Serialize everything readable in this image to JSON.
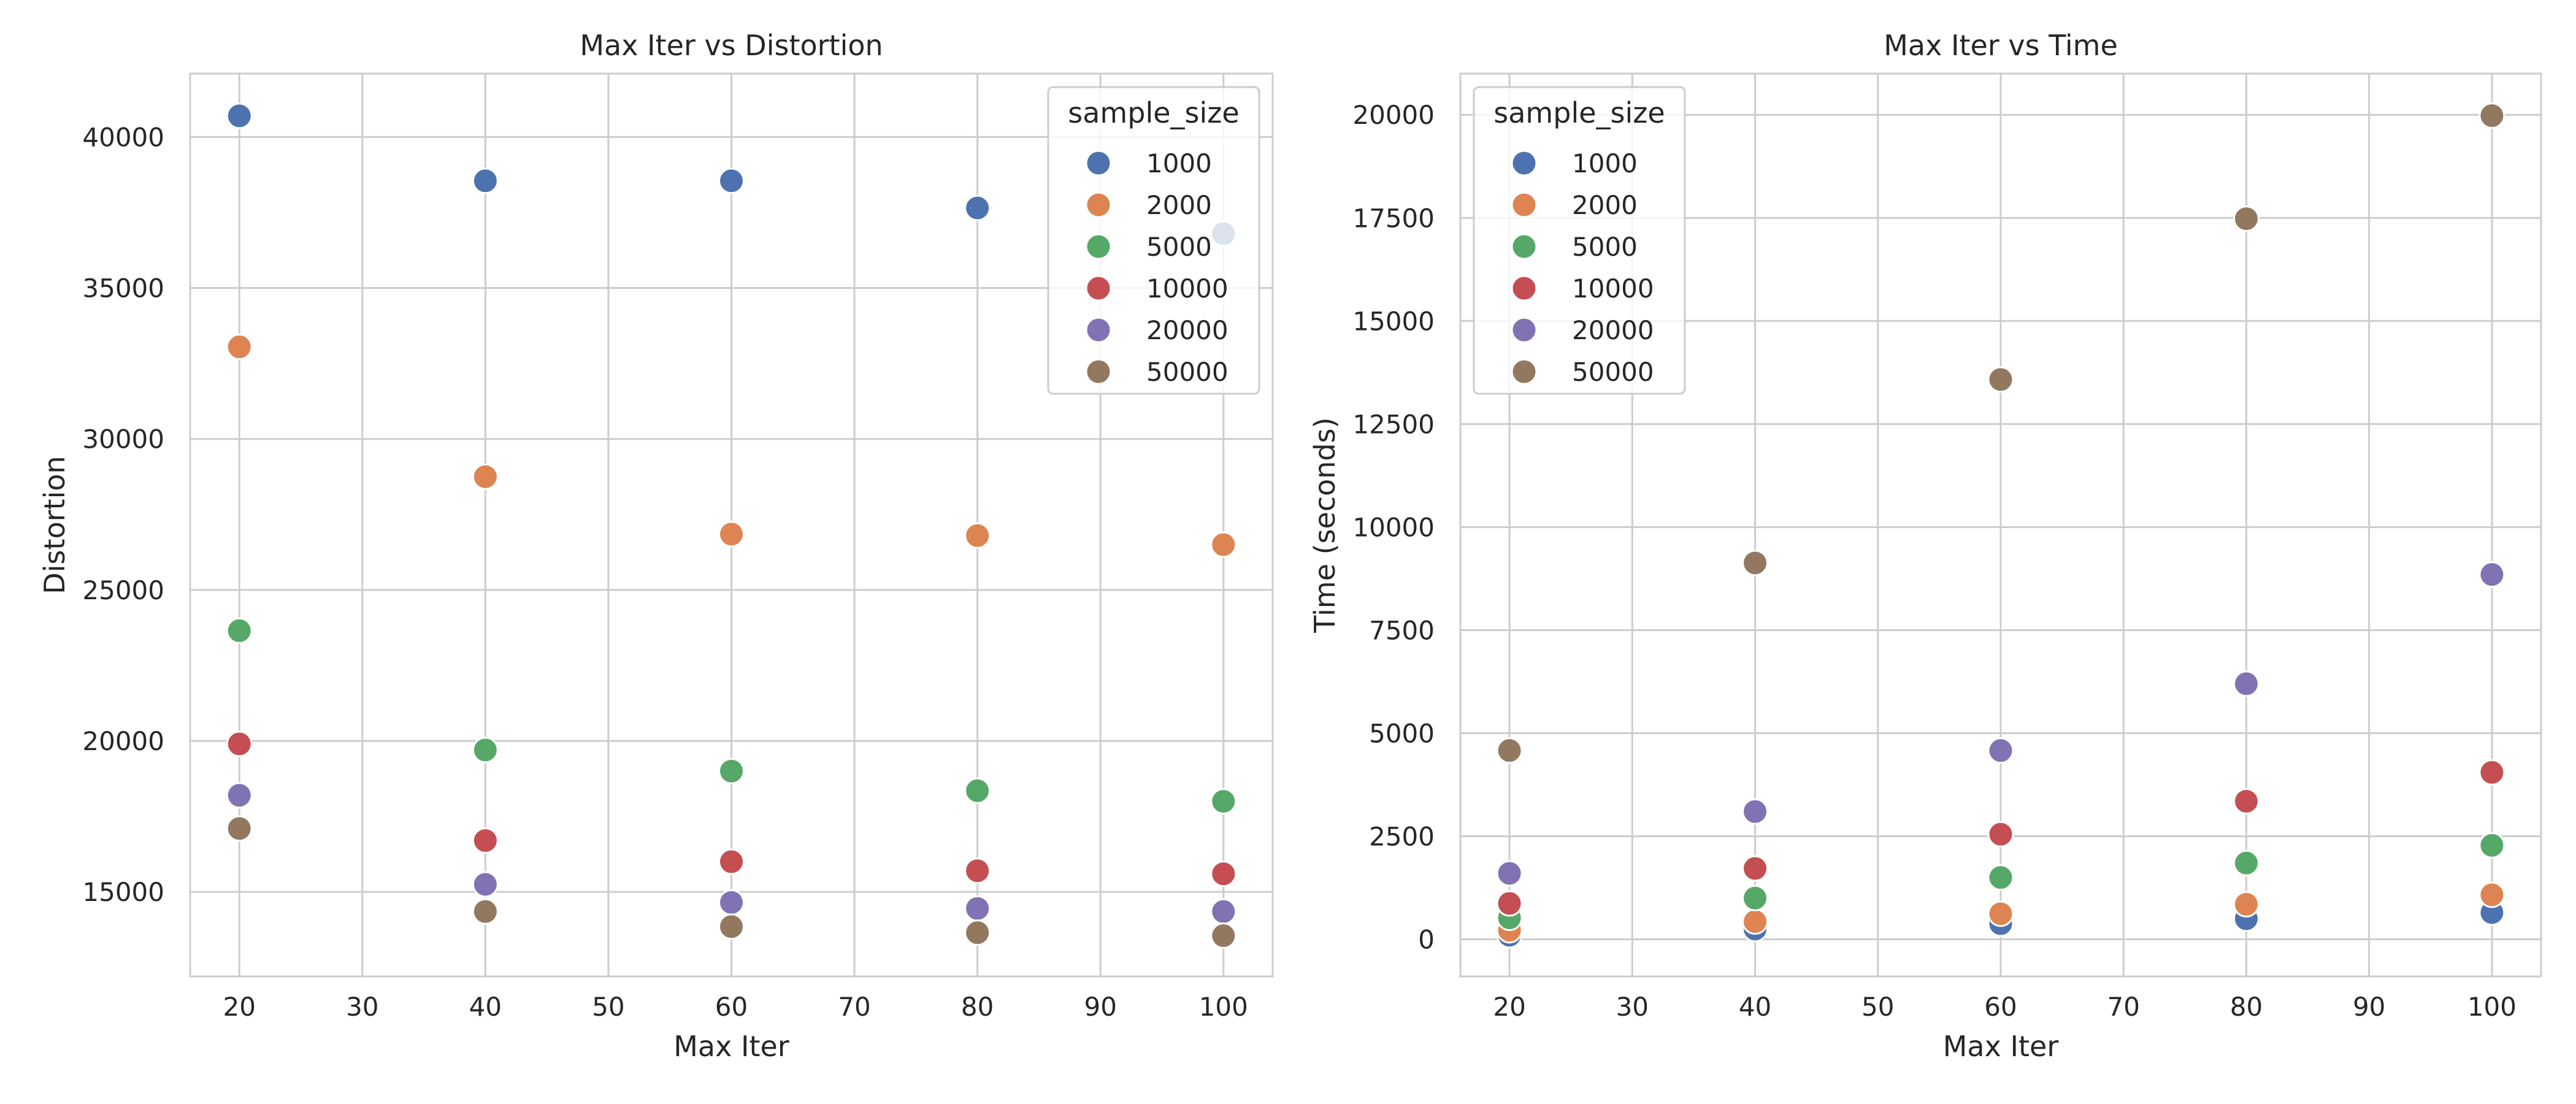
{
  "chart_data": [
    {
      "type": "scatter",
      "title": "Max Iter vs Distortion",
      "xlabel": "Max Iter",
      "ylabel": "Distortion",
      "xlim": [
        16,
        104
      ],
      "ylim": [
        12200,
        42100
      ],
      "xticks": [
        20,
        30,
        40,
        50,
        60,
        70,
        80,
        90,
        100
      ],
      "yticks": [
        15000,
        20000,
        25000,
        30000,
        35000,
        40000
      ],
      "grid": true,
      "legend": {
        "title": "sample_size",
        "placement": "top-right"
      },
      "x": [
        20,
        40,
        60,
        80,
        100
      ],
      "series": [
        {
          "name": "1000",
          "color": "#4c72b0",
          "values": [
            40700,
            38550,
            38550,
            37650,
            36800
          ]
        },
        {
          "name": "2000",
          "color": "#dd8452",
          "values": [
            33050,
            28750,
            26850,
            26800,
            26500
          ]
        },
        {
          "name": "5000",
          "color": "#55a868",
          "values": [
            23650,
            19700,
            19000,
            18350,
            18000
          ]
        },
        {
          "name": "10000",
          "color": "#c44e52",
          "values": [
            19900,
            16700,
            16000,
            15700,
            15600
          ]
        },
        {
          "name": "20000",
          "color": "#8172b3",
          "values": [
            18200,
            15250,
            14650,
            14450,
            14350
          ]
        },
        {
          "name": "50000",
          "color": "#937860",
          "values": [
            17100,
            14350,
            13850,
            13650,
            13550
          ]
        }
      ]
    },
    {
      "type": "scatter",
      "title": "Max Iter vs Time",
      "xlabel": "Max Iter",
      "ylabel": "Time (seconds)",
      "xlim": [
        16,
        104
      ],
      "ylim": [
        -900,
        21000
      ],
      "xticks": [
        20,
        30,
        40,
        50,
        60,
        70,
        80,
        90,
        100
      ],
      "yticks": [
        0,
        2500,
        5000,
        7500,
        10000,
        12500,
        15000,
        17500,
        20000
      ],
      "grid": true,
      "legend": {
        "title": "sample_size",
        "placement": "top-left"
      },
      "x": [
        20,
        40,
        60,
        80,
        100
      ],
      "series": [
        {
          "name": "1000",
          "color": "#4c72b0",
          "values": [
            100,
            250,
            380,
            500,
            650
          ]
        },
        {
          "name": "2000",
          "color": "#dd8452",
          "values": [
            220,
            430,
            620,
            850,
            1080
          ]
        },
        {
          "name": "5000",
          "color": "#55a868",
          "values": [
            520,
            1000,
            1500,
            1850,
            2280
          ]
        },
        {
          "name": "10000",
          "color": "#c44e52",
          "values": [
            870,
            1720,
            2550,
            3350,
            4050
          ]
        },
        {
          "name": "20000",
          "color": "#8172b3",
          "values": [
            1600,
            3100,
            4580,
            6200,
            8850
          ]
        },
        {
          "name": "50000",
          "color": "#937860",
          "values": [
            4580,
            9130,
            13580,
            17480,
            19980
          ]
        }
      ]
    }
  ]
}
